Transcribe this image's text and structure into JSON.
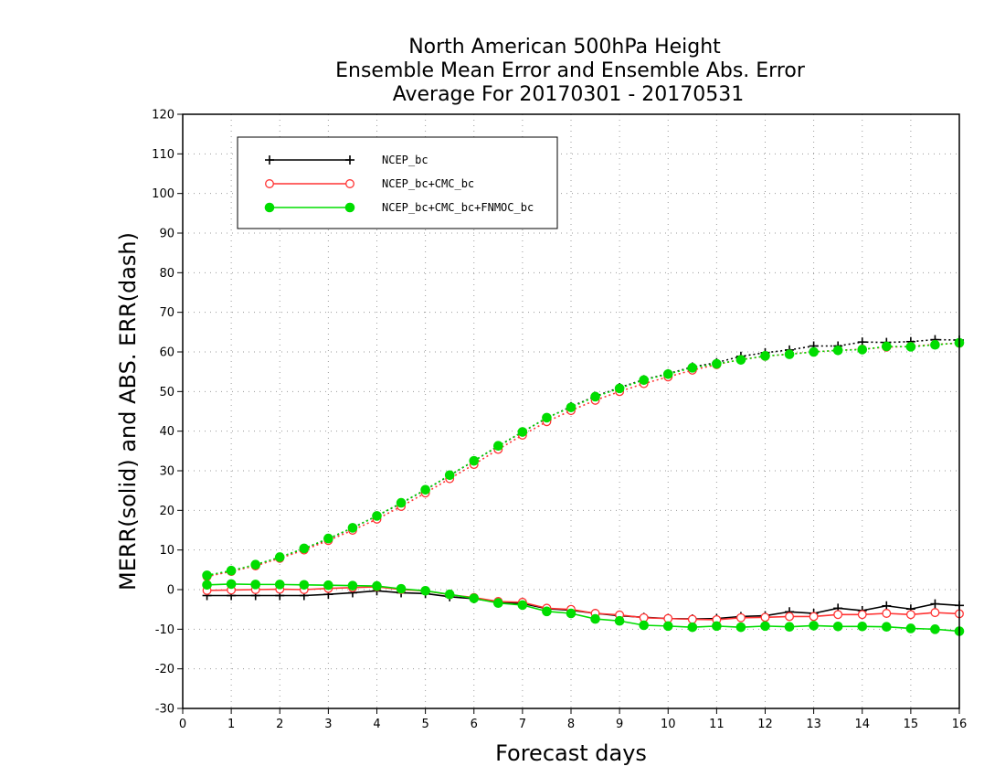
{
  "chart_data": {
    "type": "line",
    "title_lines": [
      "North American 500hPa Height",
      "Ensemble Mean Error and Ensemble Abs. Error",
      "Average For 20170301 - 20170531"
    ],
    "xlabel": "Forecast days",
    "ylabel": "MERR(solid) and ABS. ERR(dash)",
    "xlim": [
      0,
      16
    ],
    "ylim": [
      -30,
      120
    ],
    "xticks": [
      "0",
      "1",
      "2",
      "3",
      "4",
      "5",
      "6",
      "7",
      "8",
      "9",
      "10",
      "11",
      "12",
      "13",
      "14",
      "15",
      "16"
    ],
    "yticks": [
      "120",
      "110",
      "100",
      "90",
      "80",
      "70",
      "60",
      "50",
      "40",
      "30",
      "20",
      "10",
      "0",
      "-10",
      "-20",
      "-30"
    ],
    "grid": true,
    "legend_position": "top-left",
    "x": [
      0.5,
      1,
      1.5,
      2,
      2.5,
      3,
      3.5,
      4,
      4.5,
      5,
      5.5,
      6,
      6.5,
      7,
      7.5,
      8,
      8.5,
      9,
      9.5,
      10,
      10.5,
      11,
      11.5,
      12,
      12.5,
      13,
      13.5,
      14,
      14.5,
      15,
      15.5,
      16
    ],
    "series": [
      {
        "name": "NCEP_bc",
        "color": "#000000",
        "marker": "plus",
        "merr": [
          -1.5,
          -1.5,
          -1.5,
          -1.5,
          -1.5,
          -1.2,
          -0.8,
          -0.3,
          -0.8,
          -1.0,
          -1.8,
          -2.3,
          -3.2,
          -3.5,
          -4.8,
          -5.2,
          -6.0,
          -6.6,
          -7.0,
          -7.3,
          -7.4,
          -7.3,
          -6.8,
          -6.6,
          -5.6,
          -6.0,
          -4.7,
          -5.3,
          -4.1,
          -4.9,
          -3.6,
          -4.0
        ],
        "abs_err": [
          3.4,
          4.7,
          6.2,
          8.1,
          10.3,
          12.8,
          15.6,
          18.6,
          21.8,
          25.2,
          28.8,
          32.5,
          36.2,
          39.8,
          43.3,
          46.2,
          48.8,
          51.0,
          53.0,
          54.5,
          56.2,
          57.3,
          58.9,
          59.8,
          60.5,
          61.5,
          61.5,
          62.5,
          62.4,
          62.6,
          63.1,
          63.0
        ]
      },
      {
        "name": "NCEP_bc+CMC_bc",
        "color": "#ff3333",
        "marker": "open-circle",
        "merr": [
          -0.2,
          -0.1,
          0.0,
          0.1,
          0.0,
          0.3,
          0.5,
          0.7,
          0.0,
          -0.3,
          -1.3,
          -2.0,
          -3.0,
          -3.2,
          -4.7,
          -5.0,
          -6.0,
          -6.4,
          -7.1,
          -7.3,
          -7.5,
          -7.6,
          -7.1,
          -7.0,
          -6.8,
          -6.8,
          -6.3,
          -6.3,
          -6.0,
          -6.3,
          -5.8,
          -6.1
        ],
        "abs_err": [
          3.3,
          4.6,
          6.0,
          7.9,
          10.0,
          12.4,
          15.0,
          17.8,
          21.0,
          24.4,
          28.0,
          31.6,
          35.4,
          39.0,
          42.4,
          45.2,
          47.8,
          50.0,
          52.0,
          53.7,
          55.4,
          56.8,
          58.1,
          58.9,
          59.5,
          60.0,
          60.4,
          60.7,
          61.2,
          61.4,
          61.9,
          62.2
        ]
      },
      {
        "name": "NCEP_bc+CMC_bc+FNMOC_bc",
        "color": "#00dd00",
        "marker": "filled-circle",
        "merr": [
          1.2,
          1.4,
          1.3,
          1.3,
          1.2,
          1.1,
          1.0,
          0.9,
          0.2,
          -0.3,
          -1.2,
          -2.2,
          -3.4,
          -3.9,
          -5.5,
          -6.0,
          -7.4,
          -7.9,
          -9.0,
          -9.2,
          -9.5,
          -9.2,
          -9.5,
          -9.2,
          -9.4,
          -9.1,
          -9.3,
          -9.3,
          -9.4,
          -9.8,
          -10.0,
          -10.5
        ],
        "abs_err": [
          3.6,
          4.8,
          6.3,
          8.2,
          10.4,
          12.9,
          15.6,
          18.6,
          21.9,
          25.2,
          28.9,
          32.5,
          36.3,
          39.8,
          43.4,
          46.0,
          48.7,
          50.8,
          52.9,
          54.4,
          56.0,
          57.0,
          58.0,
          59.0,
          59.4,
          60.0,
          60.4,
          60.6,
          61.4,
          61.3,
          61.8,
          62.3
        ]
      }
    ]
  }
}
